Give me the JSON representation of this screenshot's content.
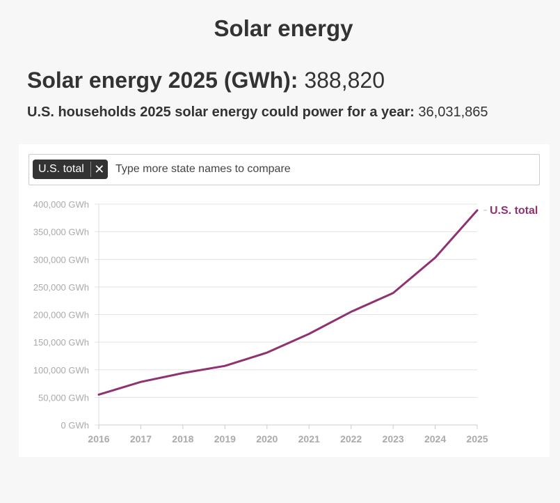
{
  "page": {
    "title": "Solar energy"
  },
  "stats": [
    {
      "label": "Solar energy 2025 (GWh):",
      "value": "388,820"
    },
    {
      "label": "U.S. households 2025 solar energy could power for a year:",
      "value": "36,031,865"
    }
  ],
  "search": {
    "chip_label": "U.S. total",
    "chip_close": "✕",
    "placeholder": "Type more state names to compare"
  },
  "chart_data": {
    "type": "line",
    "title": "",
    "xlabel": "",
    "ylabel": "",
    "x": [
      "2016",
      "2017",
      "2018",
      "2019",
      "2020",
      "2021",
      "2022",
      "2023",
      "2024",
      "2025"
    ],
    "series": [
      {
        "name": "U.S. total",
        "color": "#8e3272",
        "values": [
          55000,
          78000,
          94000,
          107000,
          131000,
          165000,
          205000,
          239000,
          303000,
          388820
        ]
      }
    ],
    "ylim": [
      0,
      400000
    ],
    "yticks": [
      0,
      50000,
      100000,
      150000,
      200000,
      250000,
      300000,
      350000,
      400000
    ],
    "ytick_labels": [
      "0 GWh",
      "50,000 GWh",
      "100,000 GWh",
      "150,000 GWh",
      "200,000 GWh",
      "250,000 GWh",
      "300,000 GWh",
      "350,000 GWh",
      "400,000 GWh"
    ],
    "grid": true,
    "legend": "end-of-line label"
  }
}
